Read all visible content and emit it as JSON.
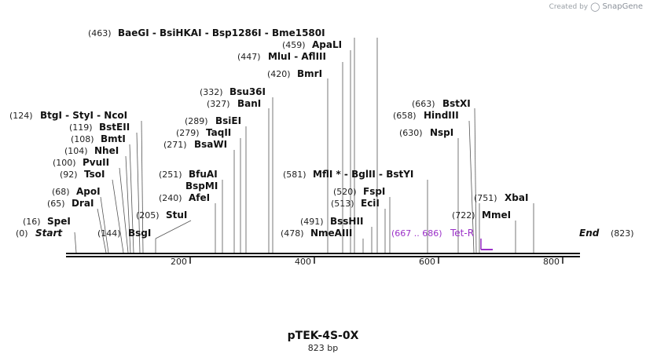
{
  "credit": {
    "prefix": "Created by",
    "brand": "SnapGene"
  },
  "map": {
    "name": "pTEK-4S-0X",
    "length_label": "823 bp",
    "start_label": "Start",
    "start_pos": "(0)",
    "end_label": "End",
    "end_pos": "(823)",
    "ticks": [
      "200",
      "400",
      "600",
      "800"
    ]
  },
  "sites": [
    {
      "pos": "(463)",
      "name": "BaeGI  -  BsiHKAI  -  Bsp1286I  -  Bme1580I"
    },
    {
      "pos": "(459)",
      "name": "ApaLI"
    },
    {
      "pos": "(447)",
      "name": "MluI  -  AflIII"
    },
    {
      "pos": "(420)",
      "name": "BmrI"
    },
    {
      "pos": "(332)",
      "name": "Bsu36I"
    },
    {
      "pos": "(327)",
      "name": "BanI"
    },
    {
      "pos": "(289)",
      "name": "BsiEI"
    },
    {
      "pos": "(279)",
      "name": "TaqII"
    },
    {
      "pos": "(271)",
      "name": "BsaWI"
    },
    {
      "pos": "(251)",
      "name": "BfuAI"
    },
    {
      "pos": "",
      "name": "BspMI"
    },
    {
      "pos": "(240)",
      "name": "AfeI"
    },
    {
      "pos": "(205)",
      "name": "StuI"
    },
    {
      "pos": "(144)",
      "name": "BsgI"
    },
    {
      "pos": "(124)",
      "name": "BtgI  -  StyI  -  NcoI"
    },
    {
      "pos": "(119)",
      "name": "BstEII"
    },
    {
      "pos": "(108)",
      "name": "BmtI"
    },
    {
      "pos": "(104)",
      "name": "NheI"
    },
    {
      "pos": "(100)",
      "name": "PvuII"
    },
    {
      "pos": "(92)",
      "name": "TsoI"
    },
    {
      "pos": "(68)",
      "name": "ApoI"
    },
    {
      "pos": "(65)",
      "name": "DraI"
    },
    {
      "pos": "(16)",
      "name": "SpeI"
    },
    {
      "pos": "(581)",
      "name": "MflI *  -  BglII  -  BstYI"
    },
    {
      "pos": "(520)",
      "name": "FspI"
    },
    {
      "pos": "(513)",
      "name": "EciI"
    },
    {
      "pos": "(491)",
      "name": "BssHII"
    },
    {
      "pos": "(478)",
      "name": "NmeAIII"
    },
    {
      "pos": "(663)",
      "name": "BstXI"
    },
    {
      "pos": "(658)",
      "name": "HindIII"
    },
    {
      "pos": "(630)",
      "name": "NspI"
    },
    {
      "pos": "(751)",
      "name": "XbaI"
    },
    {
      "pos": "(722)",
      "name": "MmeI"
    }
  ],
  "feature": {
    "range": "(667 .. 686)",
    "name": "Tet-R",
    "color": "#9b30c8"
  }
}
